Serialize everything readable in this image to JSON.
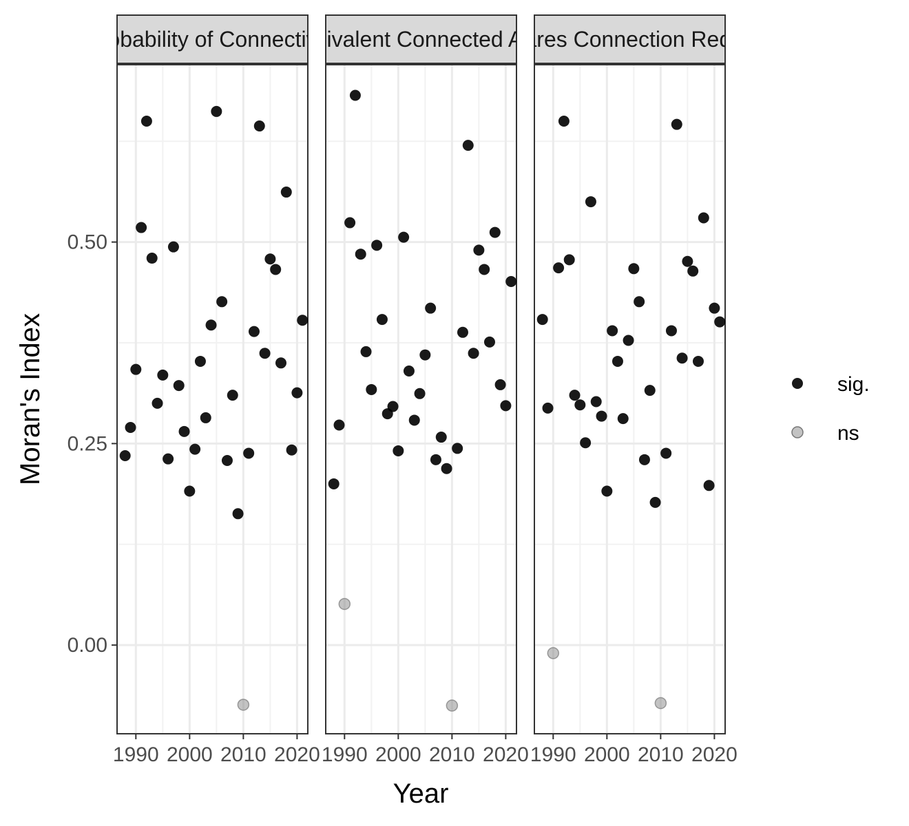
{
  "chart_data": {
    "type": "scatter",
    "facet": "panels",
    "xlabel": "Year",
    "ylabel": "Moran's Index",
    "xlim": [
      1986.5,
      2022
    ],
    "ylim": [
      -0.11,
      0.72
    ],
    "x_ticks": [
      1990,
      2000,
      2010,
      2020
    ],
    "x_tick_labels": [
      "1990",
      "2000",
      "2010",
      "2020"
    ],
    "y_ticks": [
      0.0,
      0.25,
      0.5
    ],
    "y_tick_labels": [
      "0.00",
      "0.25",
      "0.50"
    ],
    "grid": true,
    "legend": {
      "position": "right",
      "entries": [
        {
          "key": "sig",
          "label": "sig.",
          "color": "#000000",
          "alpha": 0.9
        },
        {
          "key": "ns",
          "label": "ns",
          "color": "#888888",
          "alpha": 0.5
        }
      ]
    },
    "panels": [
      {
        "title": "Probability of Connectivity",
        "points": [
          {
            "x": 1988,
            "y": 0.235,
            "group": "sig"
          },
          {
            "x": 1989,
            "y": 0.27,
            "group": "sig"
          },
          {
            "x": 1990,
            "y": 0.342,
            "group": "sig"
          },
          {
            "x": 1991,
            "y": 0.518,
            "group": "sig"
          },
          {
            "x": 1992,
            "y": 0.65,
            "group": "sig"
          },
          {
            "x": 1993,
            "y": 0.48,
            "group": "sig"
          },
          {
            "x": 1994,
            "y": 0.3,
            "group": "sig"
          },
          {
            "x": 1995,
            "y": 0.335,
            "group": "sig"
          },
          {
            "x": 1996,
            "y": 0.231,
            "group": "sig"
          },
          {
            "x": 1997,
            "y": 0.494,
            "group": "sig"
          },
          {
            "x": 1998,
            "y": 0.322,
            "group": "sig"
          },
          {
            "x": 1999,
            "y": 0.265,
            "group": "sig"
          },
          {
            "x": 2000,
            "y": 0.191,
            "group": "sig"
          },
          {
            "x": 2001,
            "y": 0.243,
            "group": "sig"
          },
          {
            "x": 2002,
            "y": 0.352,
            "group": "sig"
          },
          {
            "x": 2003,
            "y": 0.282,
            "group": "sig"
          },
          {
            "x": 2004,
            "y": 0.397,
            "group": "sig"
          },
          {
            "x": 2005,
            "y": 0.662,
            "group": "sig"
          },
          {
            "x": 2006,
            "y": 0.426,
            "group": "sig"
          },
          {
            "x": 2007,
            "y": 0.229,
            "group": "sig"
          },
          {
            "x": 2008,
            "y": 0.31,
            "group": "sig"
          },
          {
            "x": 2009,
            "y": 0.163,
            "group": "sig"
          },
          {
            "x": 2010,
            "y": -0.074,
            "group": "ns"
          },
          {
            "x": 2011,
            "y": 0.238,
            "group": "sig"
          },
          {
            "x": 2012,
            "y": 0.389,
            "group": "sig"
          },
          {
            "x": 2013,
            "y": 0.644,
            "group": "sig"
          },
          {
            "x": 2014,
            "y": 0.362,
            "group": "sig"
          },
          {
            "x": 2015,
            "y": 0.479,
            "group": "sig"
          },
          {
            "x": 2016,
            "y": 0.466,
            "group": "sig"
          },
          {
            "x": 2017,
            "y": 0.35,
            "group": "sig"
          },
          {
            "x": 2018,
            "y": 0.562,
            "group": "sig"
          },
          {
            "x": 2019,
            "y": 0.242,
            "group": "sig"
          },
          {
            "x": 2020,
            "y": 0.313,
            "group": "sig"
          },
          {
            "x": 2021,
            "y": 0.403,
            "group": "sig"
          }
        ]
      },
      {
        "title": "Equivalent Connected Area",
        "points": [
          {
            "x": 1988,
            "y": 0.2,
            "group": "sig"
          },
          {
            "x": 1989,
            "y": 0.273,
            "group": "sig"
          },
          {
            "x": 1990,
            "y": 0.051,
            "group": "ns"
          },
          {
            "x": 1991,
            "y": 0.524,
            "group": "sig"
          },
          {
            "x": 1992,
            "y": 0.682,
            "group": "sig"
          },
          {
            "x": 1993,
            "y": 0.485,
            "group": "sig"
          },
          {
            "x": 1994,
            "y": 0.364,
            "group": "sig"
          },
          {
            "x": 1995,
            "y": 0.317,
            "group": "sig"
          },
          {
            "x": 1996,
            "y": 0.496,
            "group": "sig"
          },
          {
            "x": 1997,
            "y": 0.404,
            "group": "sig"
          },
          {
            "x": 1998,
            "y": 0.287,
            "group": "sig"
          },
          {
            "x": 1999,
            "y": 0.296,
            "group": "sig"
          },
          {
            "x": 2000,
            "y": 0.241,
            "group": "sig"
          },
          {
            "x": 2001,
            "y": 0.506,
            "group": "sig"
          },
          {
            "x": 2002,
            "y": 0.34,
            "group": "sig"
          },
          {
            "x": 2003,
            "y": 0.279,
            "group": "sig"
          },
          {
            "x": 2004,
            "y": 0.312,
            "group": "sig"
          },
          {
            "x": 2005,
            "y": 0.36,
            "group": "sig"
          },
          {
            "x": 2006,
            "y": 0.418,
            "group": "sig"
          },
          {
            "x": 2007,
            "y": 0.23,
            "group": "sig"
          },
          {
            "x": 2008,
            "y": 0.258,
            "group": "sig"
          },
          {
            "x": 2009,
            "y": 0.219,
            "group": "sig"
          },
          {
            "x": 2010,
            "y": -0.075,
            "group": "ns"
          },
          {
            "x": 2011,
            "y": 0.244,
            "group": "sig"
          },
          {
            "x": 2012,
            "y": 0.388,
            "group": "sig"
          },
          {
            "x": 2013,
            "y": 0.62,
            "group": "sig"
          },
          {
            "x": 2014,
            "y": 0.362,
            "group": "sig"
          },
          {
            "x": 2015,
            "y": 0.49,
            "group": "sig"
          },
          {
            "x": 2016,
            "y": 0.466,
            "group": "sig"
          },
          {
            "x": 2017,
            "y": 0.376,
            "group": "sig"
          },
          {
            "x": 2018,
            "y": 0.512,
            "group": "sig"
          },
          {
            "x": 2019,
            "y": 0.323,
            "group": "sig"
          },
          {
            "x": 2020,
            "y": 0.297,
            "group": "sig"
          },
          {
            "x": 2021,
            "y": 0.451,
            "group": "sig"
          }
        ]
      },
      {
        "title": "Hectares Connection Required",
        "points": [
          {
            "x": 1988,
            "y": 0.404,
            "group": "sig"
          },
          {
            "x": 1989,
            "y": 0.294,
            "group": "sig"
          },
          {
            "x": 1990,
            "y": -0.01,
            "group": "ns"
          },
          {
            "x": 1991,
            "y": 0.468,
            "group": "sig"
          },
          {
            "x": 1992,
            "y": 0.65,
            "group": "sig"
          },
          {
            "x": 1993,
            "y": 0.478,
            "group": "sig"
          },
          {
            "x": 1994,
            "y": 0.31,
            "group": "sig"
          },
          {
            "x": 1995,
            "y": 0.298,
            "group": "sig"
          },
          {
            "x": 1996,
            "y": 0.251,
            "group": "sig"
          },
          {
            "x": 1997,
            "y": 0.55,
            "group": "sig"
          },
          {
            "x": 1998,
            "y": 0.302,
            "group": "sig"
          },
          {
            "x": 1999,
            "y": 0.284,
            "group": "sig"
          },
          {
            "x": 2000,
            "y": 0.191,
            "group": "sig"
          },
          {
            "x": 2001,
            "y": 0.39,
            "group": "sig"
          },
          {
            "x": 2002,
            "y": 0.352,
            "group": "sig"
          },
          {
            "x": 2003,
            "y": 0.281,
            "group": "sig"
          },
          {
            "x": 2004,
            "y": 0.378,
            "group": "sig"
          },
          {
            "x": 2005,
            "y": 0.467,
            "group": "sig"
          },
          {
            "x": 2006,
            "y": 0.426,
            "group": "sig"
          },
          {
            "x": 2007,
            "y": 0.23,
            "group": "sig"
          },
          {
            "x": 2008,
            "y": 0.316,
            "group": "sig"
          },
          {
            "x": 2009,
            "y": 0.177,
            "group": "sig"
          },
          {
            "x": 2010,
            "y": -0.072,
            "group": "ns"
          },
          {
            "x": 2011,
            "y": 0.238,
            "group": "sig"
          },
          {
            "x": 2012,
            "y": 0.39,
            "group": "sig"
          },
          {
            "x": 2013,
            "y": 0.646,
            "group": "sig"
          },
          {
            "x": 2014,
            "y": 0.356,
            "group": "sig"
          },
          {
            "x": 2015,
            "y": 0.476,
            "group": "sig"
          },
          {
            "x": 2016,
            "y": 0.464,
            "group": "sig"
          },
          {
            "x": 2017,
            "y": 0.352,
            "group": "sig"
          },
          {
            "x": 2018,
            "y": 0.53,
            "group": "sig"
          },
          {
            "x": 2019,
            "y": 0.198,
            "group": "sig"
          },
          {
            "x": 2020,
            "y": 0.418,
            "group": "sig"
          },
          {
            "x": 2021,
            "y": 0.401,
            "group": "sig"
          }
        ]
      }
    ]
  }
}
